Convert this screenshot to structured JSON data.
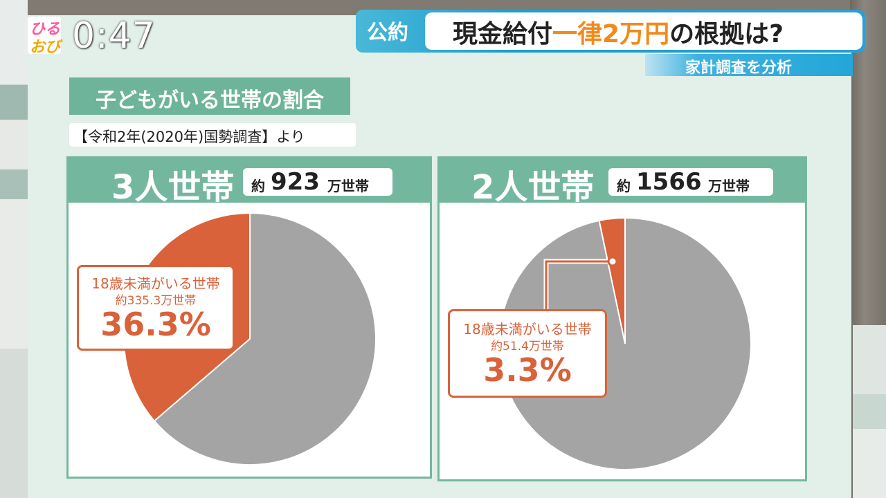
{
  "header": {
    "logo_line1": "ひる",
    "logo_line2": "おび",
    "clock": "0:47",
    "tag": "公約",
    "title_pre": "現金給付",
    "title_highlight": "一律2万円",
    "title_post": "の根拠は?",
    "subtitle": "家計調査を分析"
  },
  "panel": {
    "heading": "子どもがいる世帯の割合",
    "source": "【令和2年(2020年)国勢調査】より"
  },
  "colors": {
    "child_slice": "#d9623a",
    "other_slice": "#a4a4a4",
    "accent_green": "#74b79f"
  },
  "chart_data": [
    {
      "type": "pie",
      "title": "3人世帯",
      "total_prefix": "約",
      "total_value": "923",
      "total_suffix": "万世帯",
      "slices": [
        {
          "label": "18歳未満がいる世帯",
          "count": "約335.3万世帯",
          "percent_text": "36.3%",
          "value": 36.3
        },
        {
          "label": "",
          "value": 63.7
        }
      ]
    },
    {
      "type": "pie",
      "title": "2人世帯",
      "total_prefix": "約",
      "total_value": "1566",
      "total_suffix": "万世帯",
      "slices": [
        {
          "label": "18歳未満がいる世帯",
          "count": "約51.4万世帯",
          "percent_text": "3.3%",
          "value": 3.3
        },
        {
          "label": "",
          "value": 96.7
        }
      ]
    }
  ]
}
